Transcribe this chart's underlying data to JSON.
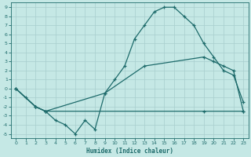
{
  "xlabel": "Humidex (Indice chaleur)",
  "background_color": "#c5e8e5",
  "grid_color": "#a8cece",
  "line_color": "#1e6b6b",
  "xlim": [
    -0.5,
    23.5
  ],
  "ylim": [
    -5.5,
    9.5
  ],
  "xticks": [
    0,
    1,
    2,
    3,
    4,
    5,
    6,
    7,
    8,
    9,
    10,
    11,
    12,
    13,
    14,
    15,
    16,
    17,
    18,
    19,
    20,
    21,
    22,
    23
  ],
  "yticks": [
    -5,
    -4,
    -3,
    -2,
    -1,
    0,
    1,
    2,
    3,
    4,
    5,
    6,
    7,
    8,
    9
  ],
  "line_main_x": [
    0,
    1,
    2,
    3,
    4,
    5,
    6,
    7,
    8,
    9,
    10,
    11,
    12,
    13,
    14,
    15,
    16,
    17,
    18,
    19,
    20,
    21,
    22,
    23
  ],
  "line_main_y": [
    0,
    -1,
    -2,
    -2.5,
    -3.5,
    -4,
    -5,
    -3.5,
    -4.5,
    -0.5,
    1,
    2.5,
    5.5,
    7,
    8.5,
    9,
    9,
    8,
    7,
    5,
    3.5,
    2,
    1.5,
    -1.5
  ],
  "line_upper_x": [
    0,
    2,
    3,
    9,
    13,
    19,
    20,
    21,
    22,
    23
  ],
  "line_upper_y": [
    0,
    -2,
    -2.5,
    -0.5,
    2.5,
    3.5,
    3,
    2.5,
    2,
    -2.5
  ],
  "line_lower_x": [
    0,
    2,
    3,
    19,
    23
  ],
  "line_lower_y": [
    0,
    -2,
    -2.5,
    -2.5,
    -2.5
  ]
}
